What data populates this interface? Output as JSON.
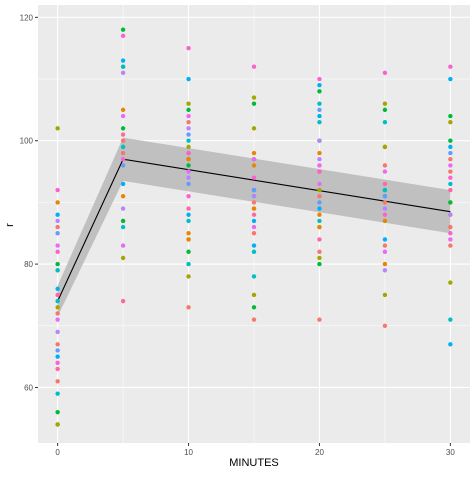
{
  "chart_data": {
    "type": "scatter",
    "xlabel": "MINUTES",
    "ylabel": "r",
    "xlim": [
      -1.5,
      31.5
    ],
    "ylim": [
      51,
      122
    ],
    "x_ticks": [
      0,
      10,
      20,
      30
    ],
    "y_ticks": [
      60,
      80,
      100,
      120
    ],
    "x_tick_labels": [
      "0",
      "10",
      "20",
      "30"
    ],
    "y_tick_labels": [
      "60",
      "80",
      "100",
      "120"
    ],
    "grid": true,
    "panel_background": "#ebebeb",
    "grid_color": "#ffffff",
    "fit_line": {
      "x": [
        0,
        5,
        30
      ],
      "y": [
        74,
        97,
        88.5
      ],
      "color": "#000000"
    },
    "fit_band": {
      "x": [
        0,
        5,
        30
      ],
      "lower": [
        71.5,
        93.5,
        85
      ],
      "upper": [
        76.5,
        100.5,
        92
      ],
      "color": "#bebebe"
    },
    "point_groups": [
      {
        "color": "#f8766d",
        "points": [
          [
            0,
            61
          ],
          [
            0,
            67
          ],
          [
            0,
            72
          ],
          [
            0,
            86
          ],
          [
            5,
            98
          ],
          [
            5,
            100
          ],
          [
            10,
            103
          ],
          [
            10,
            84
          ],
          [
            10,
            97
          ],
          [
            10,
            73
          ],
          [
            15,
            90
          ],
          [
            15,
            85
          ],
          [
            15,
            89
          ],
          [
            15,
            71
          ],
          [
            20,
            96
          ],
          [
            20,
            91
          ],
          [
            20,
            86
          ],
          [
            20,
            82
          ],
          [
            20,
            71
          ],
          [
            25,
            96
          ],
          [
            25,
            90
          ],
          [
            25,
            83
          ],
          [
            25,
            70
          ],
          [
            30,
            97
          ],
          [
            30,
            95
          ],
          [
            30,
            86
          ],
          [
            30,
            83
          ]
        ]
      },
      {
        "color": "#e58700",
        "points": [
          [
            0,
            90
          ],
          [
            0,
            79
          ],
          [
            0,
            54
          ],
          [
            5,
            105
          ],
          [
            5,
            91
          ],
          [
            5,
            87
          ],
          [
            10,
            97
          ],
          [
            10,
            85
          ],
          [
            10,
            84
          ],
          [
            15,
            98
          ],
          [
            15,
            96
          ],
          [
            15,
            89
          ],
          [
            20,
            98
          ],
          [
            20,
            88
          ],
          [
            20,
            86
          ],
          [
            25,
            99
          ],
          [
            25,
            87
          ],
          [
            25,
            80
          ],
          [
            30,
            90
          ],
          [
            30,
            88
          ]
        ]
      },
      {
        "color": "#a3a500",
        "points": [
          [
            0,
            102
          ],
          [
            0,
            73
          ],
          [
            0,
            54
          ],
          [
            5,
            112
          ],
          [
            5,
            81
          ],
          [
            10,
            106
          ],
          [
            10,
            99
          ],
          [
            10,
            78
          ],
          [
            15,
            107
          ],
          [
            15,
            102
          ],
          [
            15,
            75
          ],
          [
            20,
            95
          ],
          [
            20,
            92
          ],
          [
            20,
            81
          ],
          [
            25,
            106
          ],
          [
            25,
            99
          ],
          [
            25,
            75
          ],
          [
            30,
            103
          ],
          [
            30,
            77
          ]
        ]
      },
      {
        "color": "#00ba38",
        "points": [
          [
            0,
            80
          ],
          [
            0,
            56
          ],
          [
            5,
            118
          ],
          [
            5,
            102
          ],
          [
            5,
            87
          ],
          [
            10,
            105
          ],
          [
            10,
            96
          ],
          [
            10,
            82
          ],
          [
            15,
            106
          ],
          [
            15,
            97
          ],
          [
            15,
            73
          ],
          [
            20,
            108
          ],
          [
            20,
            100
          ],
          [
            20,
            80
          ],
          [
            25,
            105
          ],
          [
            25,
            92
          ],
          [
            30,
            104
          ],
          [
            30,
            100
          ],
          [
            30,
            90
          ]
        ]
      },
      {
        "color": "#00bfc4",
        "points": [
          [
            0,
            79
          ],
          [
            0,
            74
          ],
          [
            0,
            59
          ],
          [
            5,
            112
          ],
          [
            5,
            99
          ],
          [
            5,
            86
          ],
          [
            10,
            100
          ],
          [
            10,
            87
          ],
          [
            10,
            80
          ],
          [
            15,
            91
          ],
          [
            15,
            82
          ],
          [
            15,
            78
          ],
          [
            20,
            106
          ],
          [
            20,
            103
          ],
          [
            20,
            87
          ],
          [
            25,
            103
          ],
          [
            25,
            92
          ],
          [
            30,
            93
          ],
          [
            30,
            71
          ]
        ]
      },
      {
        "color": "#00b0f6",
        "points": [
          [
            0,
            88
          ],
          [
            0,
            76
          ],
          [
            0,
            65
          ],
          [
            5,
            113
          ],
          [
            5,
            93
          ],
          [
            10,
            110
          ],
          [
            10,
            98
          ],
          [
            10,
            88
          ],
          [
            15,
            92
          ],
          [
            15,
            87
          ],
          [
            15,
            83
          ],
          [
            20,
            109
          ],
          [
            20,
            104
          ],
          [
            20,
            89
          ],
          [
            25,
            91
          ],
          [
            25,
            84
          ],
          [
            30,
            110
          ],
          [
            30,
            99
          ],
          [
            30,
            67
          ]
        ]
      },
      {
        "color": "#619cff",
        "points": [
          [
            0,
            85
          ],
          [
            0,
            66
          ],
          [
            5,
            96
          ],
          [
            10,
            101
          ],
          [
            10,
            93
          ],
          [
            15,
            92
          ],
          [
            20,
            105
          ],
          [
            20,
            90
          ],
          [
            25,
            91
          ],
          [
            30,
            98
          ]
        ]
      },
      {
        "color": "#b983ff",
        "points": [
          [
            0,
            87
          ],
          [
            0,
            69
          ],
          [
            5,
            111
          ],
          [
            5,
            89
          ],
          [
            10,
            102
          ],
          [
            10,
            94
          ],
          [
            15,
            91
          ],
          [
            20,
            100
          ],
          [
            20,
            97
          ],
          [
            25,
            89
          ],
          [
            25,
            79
          ],
          [
            30,
            88
          ]
        ]
      },
      {
        "color": "#e76bf3",
        "points": [
          [
            0,
            83
          ],
          [
            0,
            71
          ],
          [
            5,
            104
          ],
          [
            5,
            83
          ],
          [
            10,
            104
          ],
          [
            10,
            95
          ],
          [
            15,
            97
          ],
          [
            15,
            86
          ],
          [
            20,
            96
          ],
          [
            20,
            93
          ],
          [
            25,
            95
          ],
          [
            25,
            82
          ],
          [
            30,
            96
          ],
          [
            30,
            84
          ]
        ]
      },
      {
        "color": "#fd61d1",
        "points": [
          [
            0,
            92
          ],
          [
            0,
            82
          ],
          [
            0,
            64
          ],
          [
            5,
            117
          ],
          [
            5,
            97
          ],
          [
            10,
            115
          ],
          [
            10,
            98
          ],
          [
            10,
            91
          ],
          [
            15,
            112
          ],
          [
            15,
            94
          ],
          [
            20,
            110
          ],
          [
            20,
            95
          ],
          [
            25,
            111
          ],
          [
            25,
            88
          ],
          [
            30,
            112
          ],
          [
            30,
            94
          ],
          [
            30,
            85
          ]
        ]
      },
      {
        "color": "#ff67a4",
        "points": [
          [
            0,
            63
          ],
          [
            0,
            75
          ],
          [
            5,
            74
          ],
          [
            5,
            101
          ],
          [
            10,
            89
          ],
          [
            15,
            88
          ],
          [
            20,
            84
          ],
          [
            25,
            93
          ],
          [
            30,
            92
          ]
        ]
      }
    ]
  }
}
